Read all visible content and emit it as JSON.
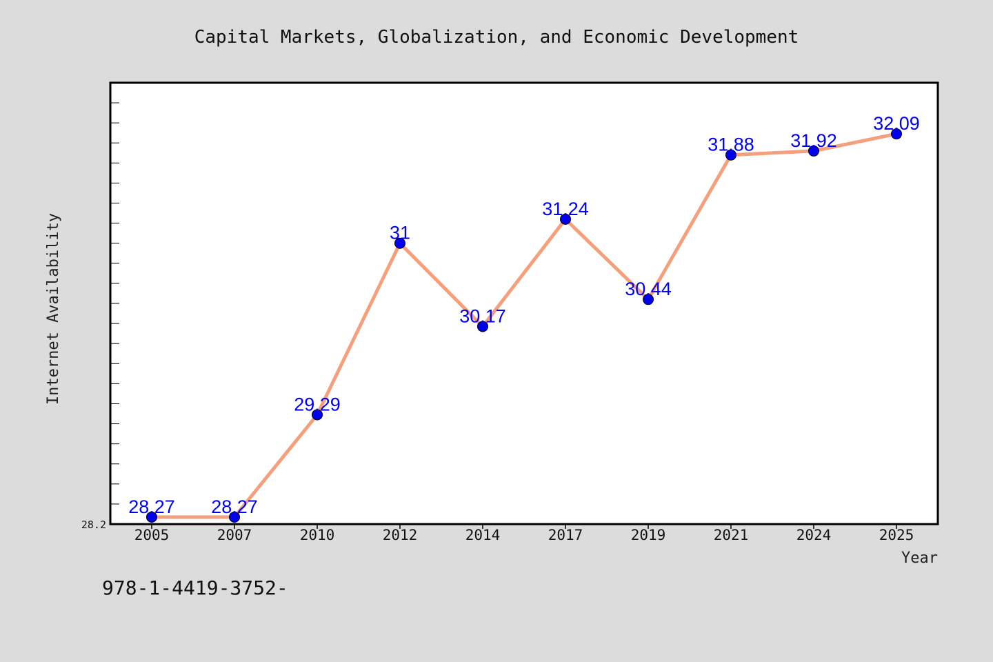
{
  "chart_data": {
    "type": "line",
    "title": "Capital Markets, Globalization, and Economic Development",
    "xlabel": "Year",
    "ylabel": "Internet Availability",
    "categories": [
      "2005",
      "2007",
      "2010",
      "2012",
      "2014",
      "2017",
      "2019",
      "2021",
      "2024",
      "2025"
    ],
    "series": [
      {
        "values": [
          28.27,
          28.27,
          29.29,
          31,
          30.17,
          31.24,
          30.44,
          31.88,
          31.92,
          32.09
        ],
        "line_color": "#f4a07e",
        "marker_color": "#0000ee"
      }
    ],
    "data_labels": [
      "28.27",
      "28.27",
      "29.29",
      "31",
      "30.17",
      "31.24",
      "30.44",
      "31.88",
      "31.92",
      "32.09"
    ],
    "data_label_color": "#0000ee",
    "ytick_labels": [
      "28.2"
    ],
    "ylim": [
      28.2,
      32.6
    ],
    "grid": false,
    "legend": "none"
  },
  "footer_text": "978-1-4419-3752-",
  "colors": {
    "background": "#dcdcdc",
    "plot_background": "#ffffff",
    "axes": "#000000"
  }
}
